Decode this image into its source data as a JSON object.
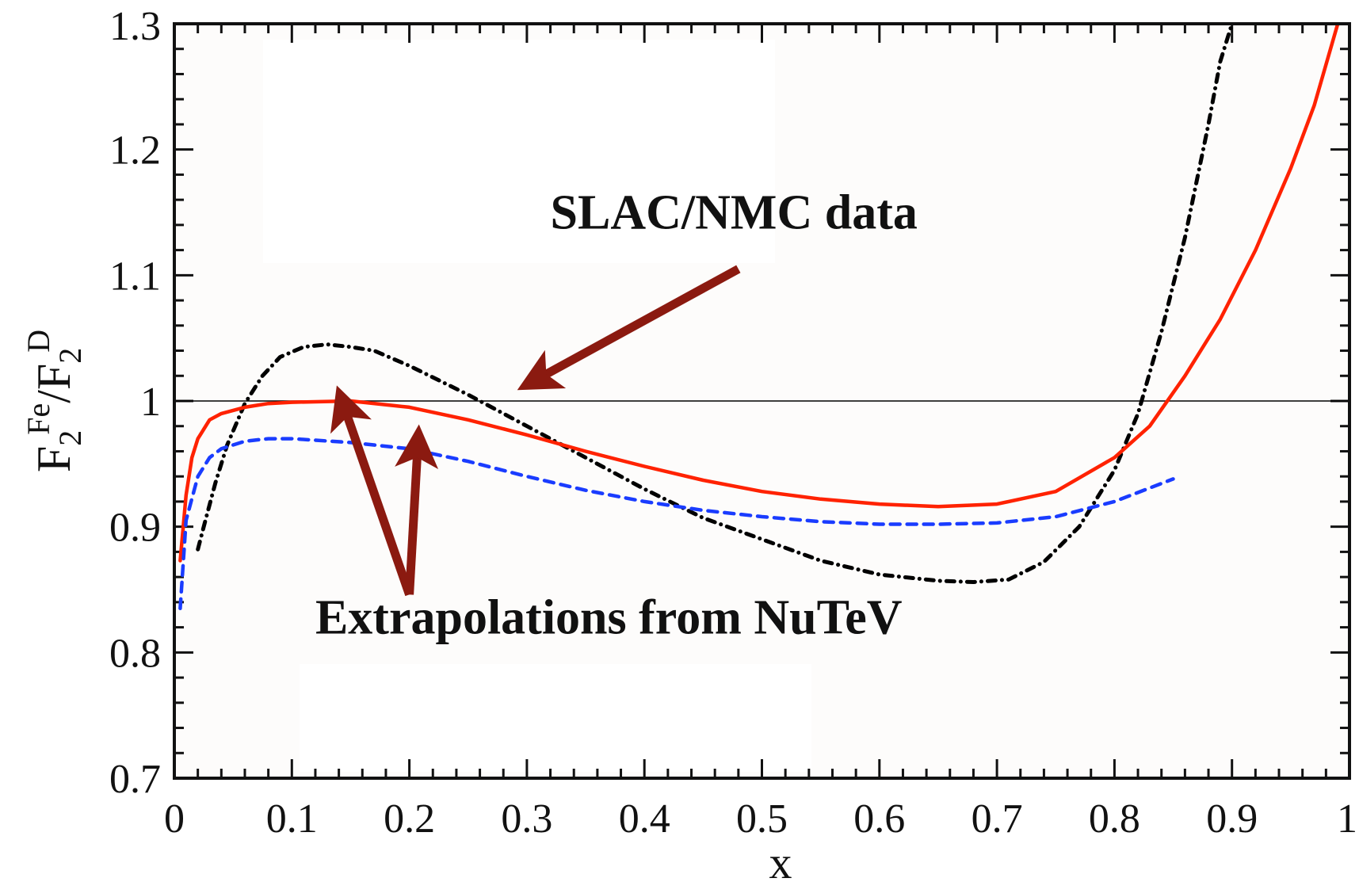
{
  "chart_data": {
    "type": "line",
    "title": "",
    "xlabel": "x",
    "ylabel": {
      "parts": [
        "F",
        "2",
        "Fe",
        "/F",
        "2",
        "D"
      ]
    },
    "xlim": [
      0,
      1
    ],
    "ylim": [
      0.7,
      1.3
    ],
    "x_ticks": [
      "0",
      "0.1",
      "0.2",
      "0.3",
      "0.4",
      "0.5",
      "0.6",
      "0.7",
      "0.8",
      "0.9",
      "1"
    ],
    "y_ticks": [
      "0.7",
      "0.8",
      "0.9",
      "1",
      "1.1",
      "1.2",
      "1.3"
    ],
    "grid": false,
    "reference_line": {
      "y": 1.0,
      "color": "#000000"
    },
    "series": [
      {
        "style": "dash-dot",
        "color": "#000000",
        "x": [
          0.02,
          0.025,
          0.035,
          0.045,
          0.06,
          0.075,
          0.09,
          0.11,
          0.13,
          0.15,
          0.17,
          0.2,
          0.25,
          0.3,
          0.35,
          0.4,
          0.45,
          0.5,
          0.55,
          0.6,
          0.65,
          0.68,
          0.71,
          0.74,
          0.77,
          0.8,
          0.82,
          0.84,
          0.86,
          0.88,
          0.89,
          0.9
        ],
        "y": [
          0.882,
          0.9,
          0.935,
          0.965,
          0.998,
          1.02,
          1.035,
          1.043,
          1.045,
          1.043,
          1.04,
          1.028,
          1.005,
          0.98,
          0.955,
          0.93,
          0.907,
          0.89,
          0.873,
          0.862,
          0.857,
          0.856,
          0.858,
          0.872,
          0.9,
          0.945,
          0.99,
          1.055,
          1.13,
          1.22,
          1.27,
          1.3
        ]
      },
      {
        "style": "solid",
        "color": "#ff2200",
        "x": [
          0.005,
          0.01,
          0.015,
          0.02,
          0.03,
          0.04,
          0.06,
          0.08,
          0.1,
          0.15,
          0.2,
          0.25,
          0.3,
          0.35,
          0.4,
          0.45,
          0.5,
          0.55,
          0.6,
          0.65,
          0.7,
          0.75,
          0.8,
          0.83,
          0.86,
          0.89,
          0.92,
          0.95,
          0.97,
          0.99
        ],
        "y": [
          0.873,
          0.925,
          0.955,
          0.97,
          0.985,
          0.99,
          0.995,
          0.998,
          0.999,
          1.0,
          0.995,
          0.985,
          0.973,
          0.96,
          0.948,
          0.937,
          0.928,
          0.922,
          0.918,
          0.916,
          0.918,
          0.928,
          0.955,
          0.98,
          1.02,
          1.065,
          1.12,
          1.185,
          1.235,
          1.3
        ]
      },
      {
        "style": "dashed",
        "color": "#1a3cff",
        "x": [
          0.005,
          0.01,
          0.02,
          0.03,
          0.04,
          0.06,
          0.08,
          0.1,
          0.15,
          0.2,
          0.25,
          0.3,
          0.35,
          0.4,
          0.45,
          0.5,
          0.55,
          0.6,
          0.65,
          0.7,
          0.75,
          0.8,
          0.85
        ],
        "y": [
          0.835,
          0.905,
          0.94,
          0.955,
          0.962,
          0.968,
          0.97,
          0.97,
          0.967,
          0.962,
          0.952,
          0.94,
          0.929,
          0.92,
          0.913,
          0.908,
          0.904,
          0.902,
          0.902,
          0.903,
          0.908,
          0.92,
          0.938
        ]
      }
    ],
    "annotations": [
      {
        "text": "SLAC/NMC data",
        "x": 0.32,
        "y": 1.137
      },
      {
        "text": "Extrapolations from  NuTeV",
        "x": 0.12,
        "y": 0.815
      }
    ],
    "arrows": [
      {
        "from": [
          0.48,
          1.105
        ],
        "to": [
          0.31,
          1.018
        ],
        "color": "#8b1a10"
      },
      {
        "from": [
          0.2,
          0.846
        ],
        "to": [
          0.145,
          0.994
        ],
        "color": "#8b1a10"
      },
      {
        "from": [
          0.2,
          0.846
        ],
        "to": [
          0.207,
          0.962
        ],
        "color": "#8b1a10"
      }
    ]
  }
}
